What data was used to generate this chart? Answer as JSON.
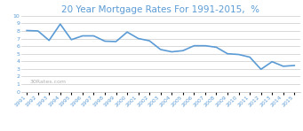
{
  "title": "20 Year Mortgage Rates For 1991-2015,  %",
  "title_color": "#5B9BD5",
  "title_fontsize": 7.5,
  "watermark": "30Rates.com",
  "years": [
    1991,
    1992,
    1993,
    1994,
    1995,
    1996,
    1997,
    1998,
    1999,
    2000,
    2001,
    2002,
    2003,
    2004,
    2005,
    2006,
    2007,
    2008,
    2009,
    2010,
    2011,
    2012,
    2013,
    2014,
    2015
  ],
  "rates": [
    8.05,
    8.0,
    6.75,
    8.9,
    6.85,
    7.35,
    7.35,
    6.65,
    6.6,
    7.85,
    7.0,
    6.7,
    5.55,
    5.25,
    5.4,
    6.05,
    6.05,
    5.85,
    5.0,
    4.9,
    4.55,
    2.95,
    3.95,
    3.35,
    3.45
  ],
  "line_color": "#5B9BD5",
  "line_width": 1.2,
  "ylim": [
    0,
    10
  ],
  "yticks": [
    0,
    1,
    2,
    3,
    4,
    5,
    6,
    7,
    8,
    9,
    10
  ],
  "bg_color": "#FFFFFF",
  "plot_bg_color": "#FFFFFF",
  "grid_color": "#BEBEBE",
  "tick_label_fontsize": 4.5,
  "tick_label_color": "#5B9BD5",
  "watermark_fontsize": 4.5,
  "watermark_color": "#A0A0A0"
}
